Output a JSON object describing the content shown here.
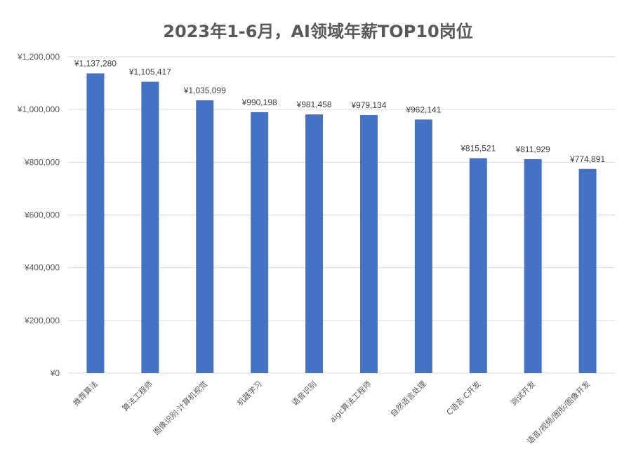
{
  "chart_data": {
    "type": "bar",
    "title": "2023年1-6月，AI领域年薪TOP10岗位",
    "xlabel": "",
    "ylabel": "",
    "ylim": [
      0,
      1200000
    ],
    "yticks": [
      0,
      200000,
      400000,
      600000,
      800000,
      1000000,
      1200000
    ],
    "ytick_labels": [
      "¥0",
      "¥200,000",
      "¥400,000",
      "¥600,000",
      "¥800,000",
      "¥1,000,000",
      "¥1,200,000"
    ],
    "categories": [
      "推荐算法",
      "算法工程师",
      "图像识别·计算机视觉",
      "机器学习",
      "语音识别",
      "aigc算法工程师",
      "自然语言处理",
      "C语言·C开发",
      "测试开发",
      "语音/视频/图形/图像开发"
    ],
    "values": [
      1137280,
      1105417,
      1035099,
      990198,
      981458,
      979134,
      962141,
      815521,
      811929,
      774891
    ],
    "data_labels": [
      "¥1,137,280",
      "¥1,105,417",
      "¥1,035,099",
      "¥990,198",
      "¥981,458",
      "¥979,134",
      "¥962,141",
      "¥815,521",
      "¥811,929",
      "¥774,891"
    ],
    "bar_color": "#4472c4",
    "grid": true,
    "legend": "none"
  }
}
